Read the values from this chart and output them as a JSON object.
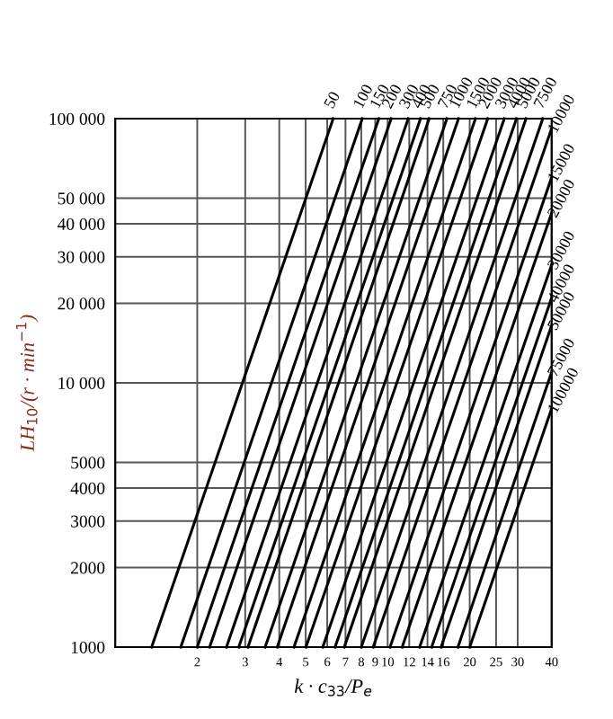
{
  "chart_data": {
    "type": "line",
    "xlabel": "k · c$_{33}$/P$_{e}$",
    "ylabel": "LH$_{10}$/(r · min$^{−1}$)",
    "log": "xy",
    "grid": true,
    "marker": "none",
    "line_style": "solid",
    "legend": false,
    "xlim": [
      1,
      40
    ],
    "ylim": [
      1000,
      100000
    ],
    "xticks": [
      2,
      3,
      4,
      5,
      6,
      7,
      8,
      9,
      10,
      12,
      14,
      16,
      20,
      25,
      30,
      40
    ],
    "yticks": [
      1000,
      2000,
      3000,
      4000,
      5000,
      {
        "value": 10000,
        "label": "10 000"
      },
      {
        "value": 20000,
        "label": "20 000"
      },
      {
        "value": 30000,
        "label": "30 000"
      },
      {
        "value": 40000,
        "label": "40 000"
      },
      {
        "value": 50000,
        "label": "50 000"
      },
      {
        "value": 100000,
        "label": "100 000"
      }
    ],
    "series": [
      {
        "name": "50",
        "color": "#000000",
        "x": [
          1.36,
          6.31
        ],
        "values": [
          1000,
          100000
        ]
      },
      {
        "name": "100",
        "color": "#000000",
        "x": [
          1.74,
          8.07
        ],
        "values": [
          1000,
          100000
        ]
      },
      {
        "name": "150",
        "color": "#000000",
        "x": [
          2.0,
          9.28
        ],
        "values": [
          1000,
          100000
        ]
      },
      {
        "name": "200",
        "color": "#000000",
        "x": [
          2.22,
          10.3
        ],
        "values": [
          1000,
          100000
        ]
      },
      {
        "name": "300",
        "color": "#000000",
        "x": [
          2.56,
          11.9
        ],
        "values": [
          1000,
          100000
        ]
      },
      {
        "name": "400",
        "color": "#000000",
        "x": [
          2.84,
          13.2
        ],
        "values": [
          1000,
          100000
        ]
      },
      {
        "name": "500",
        "color": "#000000",
        "x": [
          3.07,
          14.2
        ],
        "values": [
          1000,
          100000
        ]
      },
      {
        "name": "750",
        "color": "#000000",
        "x": [
          3.55,
          16.5
        ],
        "values": [
          1000,
          100000
        ]
      },
      {
        "name": "1000",
        "color": "#000000",
        "x": [
          3.93,
          18.2
        ],
        "values": [
          1000,
          100000
        ]
      },
      {
        "name": "1500",
        "color": "#000000",
        "x": [
          4.53,
          21.0
        ],
        "values": [
          1000,
          100000
        ]
      },
      {
        "name": "2000",
        "color": "#000000",
        "x": [
          5.01,
          23.3
        ],
        "values": [
          1000,
          100000
        ]
      },
      {
        "name": "3000",
        "color": "#000000",
        "x": [
          5.78,
          26.8
        ],
        "values": [
          1000,
          100000
        ]
      },
      {
        "name": "4000",
        "color": "#000000",
        "x": [
          6.41,
          29.7
        ],
        "values": [
          1000,
          100000
        ]
      },
      {
        "name": "5000",
        "color": "#000000",
        "x": [
          6.93,
          32.2
        ],
        "values": [
          1000,
          100000
        ]
      },
      {
        "name": "7500",
        "color": "#000000",
        "x": [
          8.0,
          37.1
        ],
        "values": [
          1000,
          100000
        ]
      },
      {
        "name": "10000",
        "color": "#000000",
        "x": [
          8.85,
          40
        ],
        "values": [
          1000,
          92000
        ]
      },
      {
        "name": "15000",
        "color": "#000000",
        "x": [
          10.2,
          40
        ],
        "values": [
          1000,
          60000
        ]
      },
      {
        "name": "20000",
        "color": "#000000",
        "x": [
          11.3,
          40
        ],
        "values": [
          1000,
          44000
        ]
      },
      {
        "name": "30000",
        "color": "#000000",
        "x": [
          13.1,
          40
        ],
        "values": [
          1000,
          28000
        ]
      },
      {
        "name": "40000",
        "color": "#000000",
        "x": [
          14.5,
          40
        ],
        "values": [
          1000,
          21000
        ]
      },
      {
        "name": "50000",
        "color": "#000000",
        "x": [
          15.7,
          40
        ],
        "values": [
          1000,
          16500
        ]
      },
      {
        "name": "75000",
        "color": "#000000",
        "x": [
          18.1,
          40
        ],
        "values": [
          1000,
          11000
        ]
      },
      {
        "name": "100000",
        "color": "#000000",
        "x": [
          20.0,
          40
        ],
        "values": [
          1000,
          8000
        ]
      }
    ]
  }
}
